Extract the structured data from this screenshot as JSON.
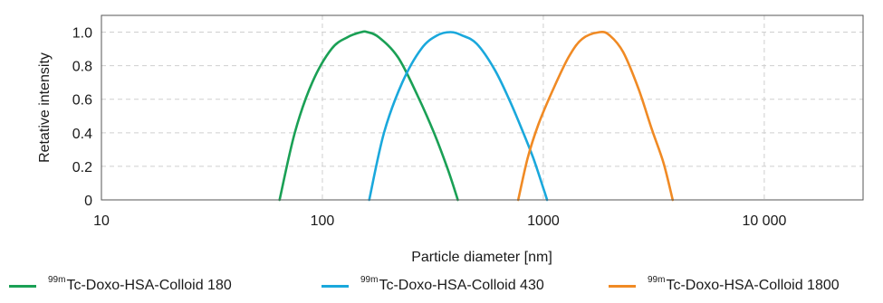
{
  "chart_data": {
    "type": "line",
    "xscale": "log",
    "xlim": [
      10,
      28000
    ],
    "ylim": [
      0,
      1.1
    ],
    "xlabel": "Particle diameter [nm]",
    "ylabel": "Retative intensity",
    "grid": true,
    "legend_position": "bottom",
    "x_ticks": [
      {
        "value": 10,
        "label": "10"
      },
      {
        "value": 100,
        "label": "100"
      },
      {
        "value": 1000,
        "label": "1000"
      },
      {
        "value": 10000,
        "label": "10 000"
      }
    ],
    "y_ticks": [
      {
        "value": 0,
        "label": "0"
      },
      {
        "value": 0.2,
        "label": "0.2"
      },
      {
        "value": 0.4,
        "label": "0.4"
      },
      {
        "value": 0.6,
        "label": "0.6"
      },
      {
        "value": 0.8,
        "label": "0.8"
      },
      {
        "value": 1.0,
        "label": "1.0"
      }
    ],
    "series": [
      {
        "name": "Tc-Doxo-HSA-Colloid 180",
        "isotope": "99m",
        "color": "#1aa055",
        "x": [
          64,
          75,
          90,
          110,
          130,
          150,
          160,
          180,
          220,
          270,
          320,
          370,
          410
        ],
        "y": [
          0,
          0.4,
          0.7,
          0.9,
          0.97,
          1.0,
          1.0,
          0.97,
          0.85,
          0.62,
          0.4,
          0.18,
          0
        ]
      },
      {
        "name": "Tc-Doxo-HSA-Colloid 430",
        "isotope": "99m",
        "color": "#1aa8dc",
        "x": [
          163,
          190,
          230,
          280,
          330,
          380,
          430,
          500,
          600,
          700,
          800,
          900,
          1000,
          1040
        ],
        "y": [
          0,
          0.4,
          0.7,
          0.9,
          0.98,
          1.0,
          0.98,
          0.93,
          0.78,
          0.6,
          0.42,
          0.25,
          0.07,
          0
        ]
      },
      {
        "name": "Tc-Doxo-HSA-Colloid 1800",
        "isotope": "99m",
        "color": "#f08a24",
        "x": [
          770,
          850,
          950,
          1100,
          1300,
          1500,
          1800,
          2000,
          2300,
          2700,
          3100,
          3500,
          3850
        ],
        "y": [
          0,
          0.25,
          0.45,
          0.65,
          0.85,
          0.96,
          1.0,
          0.98,
          0.88,
          0.66,
          0.42,
          0.22,
          0
        ]
      }
    ]
  }
}
